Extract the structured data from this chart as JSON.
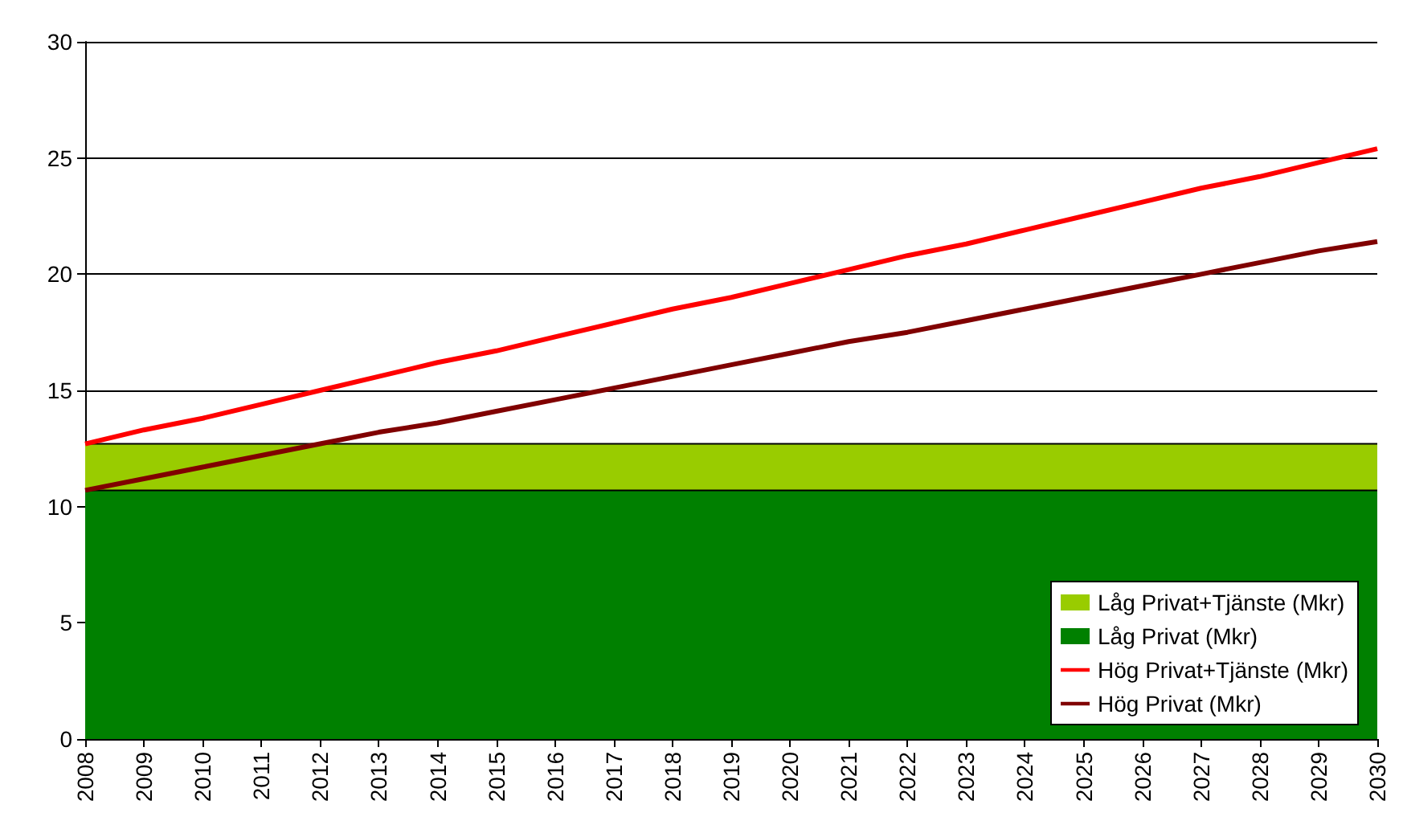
{
  "chart_data": {
    "type": "line",
    "categories": [
      "2008",
      "2009",
      "2010",
      "2011",
      "2012",
      "2013",
      "2014",
      "2015",
      "2016",
      "2017",
      "2018",
      "2019",
      "2020",
      "2021",
      "2022",
      "2023",
      "2024",
      "2025",
      "2026",
      "2027",
      "2028",
      "2029",
      "2030"
    ],
    "series": [
      {
        "name": "Låg Privat (Mkr)",
        "type": "area",
        "color": "#008000",
        "values": [
          10.7,
          10.7,
          10.7,
          10.7,
          10.7,
          10.7,
          10.7,
          10.7,
          10.7,
          10.7,
          10.7,
          10.7,
          10.7,
          10.7,
          10.7,
          10.7,
          10.7,
          10.7,
          10.7,
          10.7,
          10.7,
          10.7,
          10.7
        ]
      },
      {
        "name": "Låg Privat+Tjänste (Mkr)",
        "type": "area",
        "color": "#99cc00",
        "values": [
          2.0,
          2.0,
          2.0,
          2.0,
          2.0,
          2.0,
          2.0,
          2.0,
          2.0,
          2.0,
          2.0,
          2.0,
          2.0,
          2.0,
          2.0,
          2.0,
          2.0,
          2.0,
          2.0,
          2.0,
          2.0,
          2.0,
          2.0
        ]
      },
      {
        "name": "Hög Privat+Tjänste (Mkr)",
        "color": "#ff0000",
        "values": [
          12.7,
          13.3,
          13.8,
          14.4,
          15.0,
          15.6,
          16.2,
          16.7,
          17.3,
          17.9,
          18.5,
          19.0,
          19.6,
          20.2,
          20.8,
          21.3,
          21.9,
          22.5,
          23.1,
          23.7,
          24.2,
          24.8,
          25.4
        ]
      },
      {
        "name": "Hög Privat (Mkr)",
        "color": "#800000",
        "values": [
          10.7,
          11.2,
          11.7,
          12.2,
          12.7,
          13.2,
          13.6,
          14.1,
          14.6,
          15.1,
          15.6,
          16.1,
          16.6,
          17.1,
          17.5,
          18.0,
          18.5,
          19.0,
          19.5,
          20.0,
          20.5,
          21.0,
          21.4
        ]
      }
    ],
    "stacked": true,
    "ylim": [
      0,
      30
    ],
    "yticks": [
      0,
      5,
      10,
      15,
      20,
      25,
      30
    ],
    "grid": "y",
    "legend": "bottom right",
    "marker": "none",
    "line_style": "solid"
  }
}
